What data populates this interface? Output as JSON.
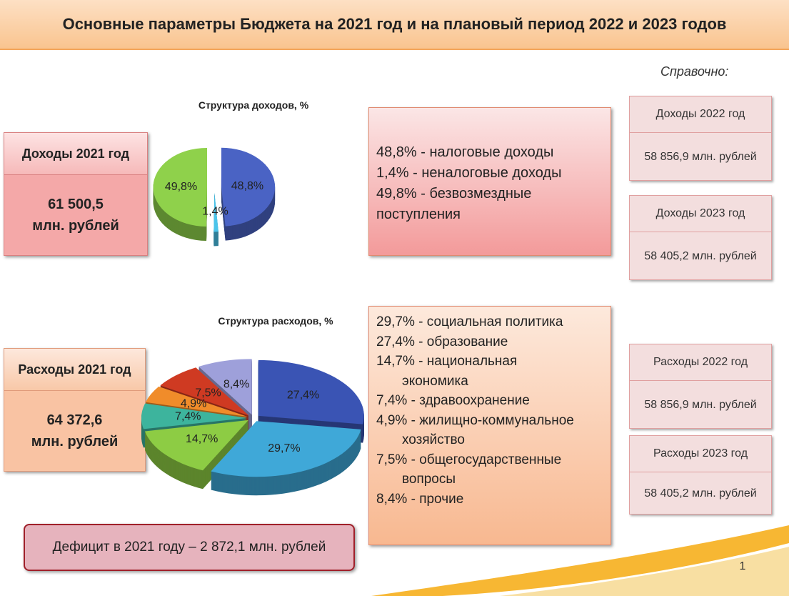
{
  "header": {
    "title": "Основные параметры Бюджета на 2021 год и на плановый период 2022 и 2023 годов",
    "reference": "Справочно:"
  },
  "income": {
    "label": "Доходы 2021 год",
    "amount": "61 500,5",
    "unit": "млн. рублей",
    "notes": [
      "48,8% - налоговые доходы",
      "1,4% - неналоговые доходы",
      "49,8% - безвозмездные поступления"
    ]
  },
  "expenses": {
    "label": "Расходы 2021 год",
    "amount": "64 372,6",
    "unit": "млн. рублей",
    "notes": [
      "29,7% - социальная политика",
      "27,4% - образование",
      "14,7% - национальная экономика",
      "7,4% - здравоохранение",
      "4,9% - жилищно-коммунальное хозяйство",
      "7,5% - общегосударственные вопросы",
      "8,4% - прочие"
    ]
  },
  "reference": [
    {
      "label": "Доходы 2022 год",
      "value": "58 856,9 млн. рублей"
    },
    {
      "label": "Доходы 2023 год",
      "value": "58 405,2 млн. рублей"
    },
    {
      "label": "Расходы 2022 год",
      "value": "58 856,9 млн. рублей"
    },
    {
      "label": "Расходы 2023 год",
      "value": "58 405,2 млн. рублей"
    }
  ],
  "deficit": "Дефицит в 2021 году – 2 872,1 млн. рублей",
  "page_number": "1",
  "chart_data": [
    {
      "type": "pie",
      "title": "Структура доходов, %",
      "values": [
        48.8,
        1.4,
        49.8
      ],
      "value_labels": [
        "48,8%",
        "1,4%",
        "49,8%"
      ],
      "colors": [
        "#4a63c4",
        "#4cc4ea",
        "#8fd14b"
      ]
    },
    {
      "type": "pie",
      "title": "Структура расходов, %",
      "values": [
        27.4,
        29.7,
        14.7,
        7.4,
        4.9,
        7.5,
        8.4
      ],
      "value_labels": [
        "27,4%",
        "29,7%",
        "14,7%",
        "7,4%",
        "4,9%",
        "7,5%",
        "8,4%"
      ],
      "colors": [
        "#3a54b4",
        "#3fa8d8",
        "#8dcc44",
        "#3db49d",
        "#f08c2a",
        "#cf3a22",
        "#9ea0da"
      ]
    }
  ]
}
